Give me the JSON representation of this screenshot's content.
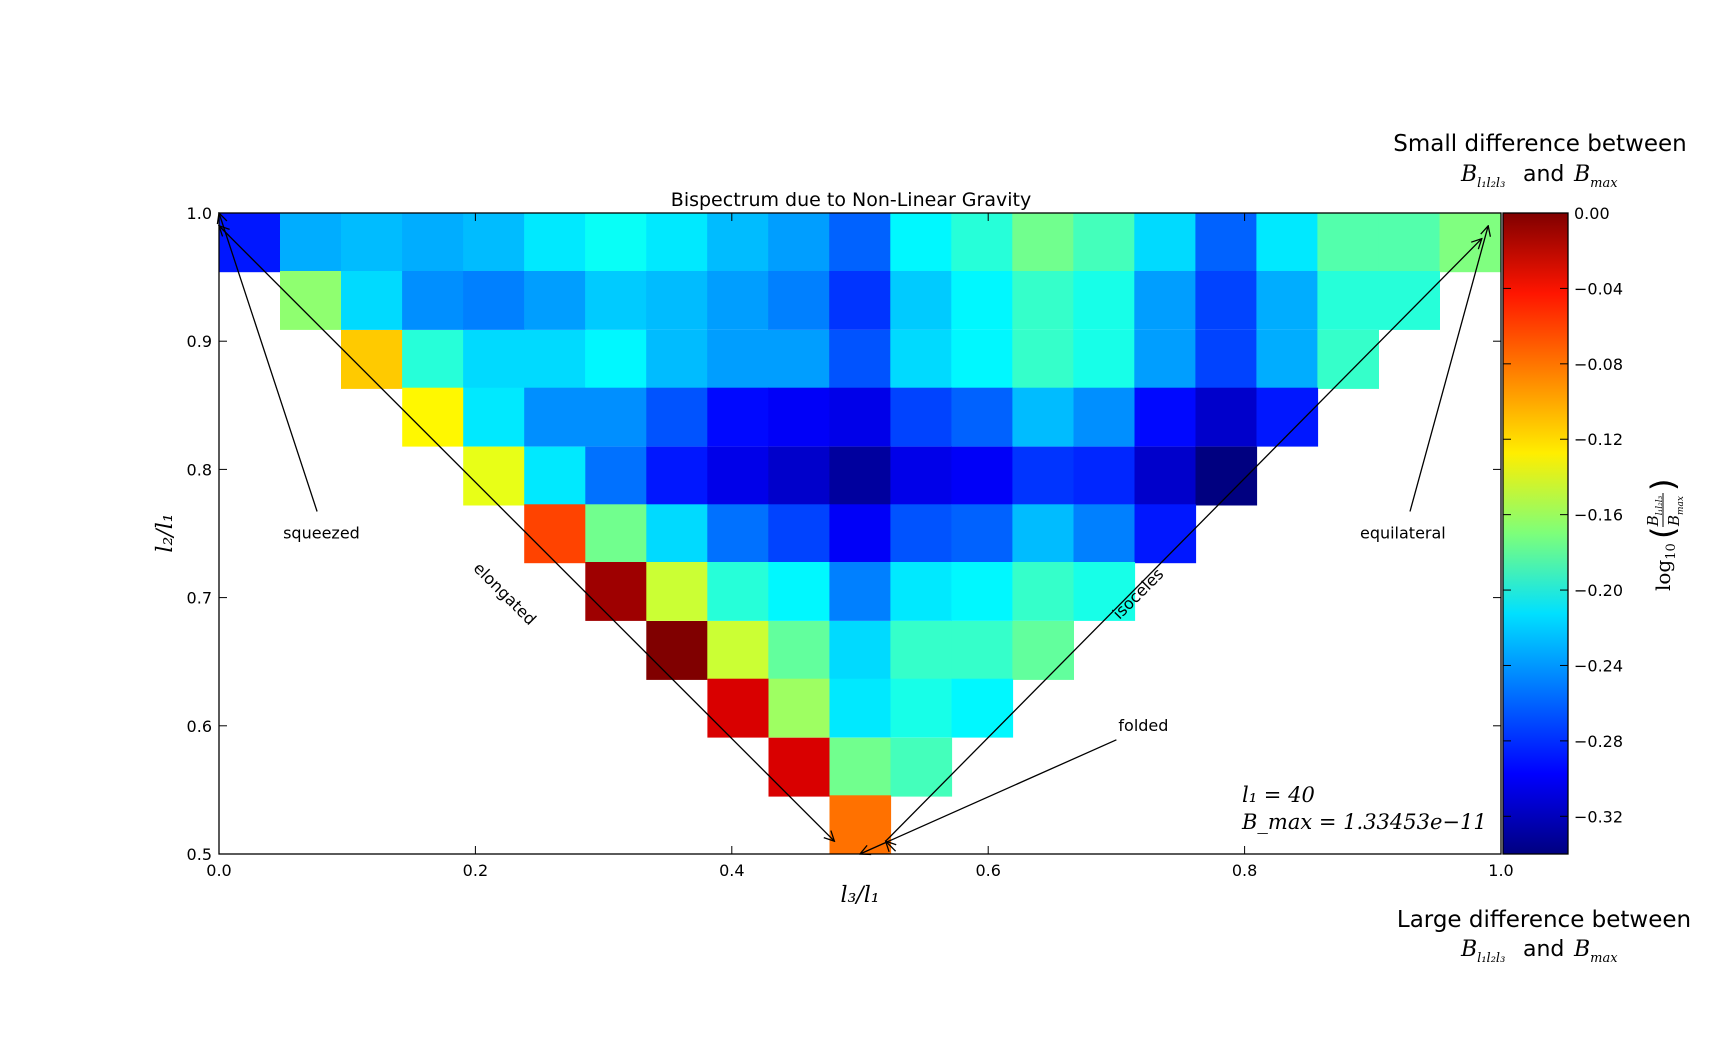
{
  "chart_data": {
    "type": "heatmap",
    "title": "Bispectrum due to Non-Linear Gravity",
    "xlabel": "l₃/l₁",
    "ylabel": "l₂/l₁",
    "xlim": [
      0.0,
      1.0
    ],
    "ylim": [
      0.5,
      1.0
    ],
    "x_ticks": [
      "0.0",
      "0.2",
      "0.4",
      "0.6",
      "0.8",
      "1.0"
    ],
    "y_ticks": [
      "0.5",
      "0.6",
      "0.7",
      "0.8",
      "0.9",
      "1.0"
    ],
    "grid": false,
    "colormap": "jet",
    "colorbar": {
      "label": "log10(B_l1l2l3 / B_max)",
      "range": [
        -0.34,
        0.0
      ],
      "ticks": [
        "0.00",
        "−0.04",
        "−0.08",
        "−0.12",
        "−0.16",
        "−0.20",
        "−0.24",
        "−0.28",
        "−0.32"
      ],
      "top_note": {
        "line1": "Small difference between",
        "sub_and": "and"
      },
      "bottom_note": {
        "line1": "Large difference between",
        "sub_and": "and"
      }
    },
    "cell_width": 0.0476,
    "cell_height": 0.0455,
    "rows": [
      {
        "y": 0.977,
        "x_start": 0.0,
        "values": [
          -0.29,
          -0.24,
          -0.235,
          -0.24,
          -0.235,
          -0.22,
          -0.21,
          -0.22,
          -0.235,
          -0.245,
          -0.265,
          -0.215,
          -0.2,
          -0.175,
          -0.19,
          -0.225,
          -0.265,
          -0.22,
          -0.185,
          -0.185,
          -0.17
        ]
      },
      {
        "y": 0.932,
        "x_start": 0.0476,
        "values": [
          -0.165,
          -0.225,
          -0.25,
          -0.255,
          -0.245,
          -0.23,
          -0.235,
          -0.245,
          -0.255,
          -0.28,
          -0.23,
          -0.215,
          -0.195,
          -0.205,
          -0.245,
          -0.275,
          -0.24,
          -0.2,
          -0.2
        ]
      },
      {
        "y": 0.886,
        "x_start": 0.0952,
        "values": [
          -0.11,
          -0.2,
          -0.225,
          -0.225,
          -0.215,
          -0.235,
          -0.245,
          -0.245,
          -0.27,
          -0.225,
          -0.215,
          -0.195,
          -0.205,
          -0.245,
          -0.275,
          -0.24,
          -0.195
        ]
      },
      {
        "y": 0.841,
        "x_start": 0.1429,
        "values": [
          -0.125,
          -0.22,
          -0.25,
          -0.25,
          -0.27,
          -0.295,
          -0.3,
          -0.305,
          -0.275,
          -0.265,
          -0.235,
          -0.25,
          -0.295,
          -0.315,
          -0.29
        ]
      },
      {
        "y": 0.795,
        "x_start": 0.1905,
        "values": [
          -0.135,
          -0.22,
          -0.26,
          -0.29,
          -0.305,
          -0.315,
          -0.33,
          -0.305,
          -0.3,
          -0.28,
          -0.285,
          -0.315,
          -0.34
        ]
      },
      {
        "y": 0.75,
        "x_start": 0.2381,
        "values": [
          -0.065,
          -0.175,
          -0.225,
          -0.26,
          -0.275,
          -0.3,
          -0.27,
          -0.265,
          -0.235,
          -0.255,
          -0.29
        ]
      },
      {
        "y": 0.705,
        "x_start": 0.2857,
        "values": [
          -0.01,
          -0.145,
          -0.2,
          -0.215,
          -0.255,
          -0.22,
          -0.215,
          -0.195,
          -0.205
        ]
      },
      {
        "y": 0.659,
        "x_start": 0.3333,
        "values": [
          0.0,
          -0.145,
          -0.18,
          -0.225,
          -0.195,
          -0.195,
          -0.18
        ]
      },
      {
        "y": 0.614,
        "x_start": 0.381,
        "values": [
          -0.03,
          -0.16,
          -0.22,
          -0.205,
          -0.215
        ]
      },
      {
        "y": 0.568,
        "x_start": 0.4286,
        "values": [
          -0.03,
          -0.175,
          -0.19
        ]
      },
      {
        "y": 0.523,
        "x_start": 0.4762,
        "values": [
          -0.08
        ]
      }
    ],
    "annotations": [
      {
        "text": "squeezed",
        "x": 0.05,
        "y": 0.75,
        "arrow_to": [
          0.0,
          1.0
        ]
      },
      {
        "text": "elongated",
        "x": 0.22,
        "y": 0.7,
        "rotation_deg": 45,
        "arrow_from": [
          0.0,
          0.99
        ],
        "arrow_to": [
          0.48,
          0.51
        ]
      },
      {
        "text": "isoceles",
        "x": 0.72,
        "y": 0.7,
        "rotation_deg": -45,
        "arrow_from": [
          0.52,
          0.51
        ],
        "arrow_to": [
          0.985,
          0.98
        ]
      },
      {
        "text": "equilateral",
        "x": 0.89,
        "y": 0.75,
        "arrow_to": [
          0.99,
          0.99
        ]
      },
      {
        "text": "folded",
        "x": 0.7,
        "y": 0.6,
        "arrow_to": [
          0.5,
          0.5
        ]
      }
    ],
    "params": {
      "l1_label": "l₁ = 40",
      "bmax_label": "B_max = 1.33453e−11"
    }
  }
}
